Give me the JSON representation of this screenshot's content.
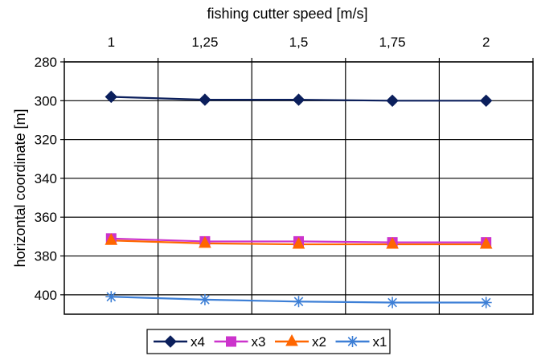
{
  "chart_data": {
    "type": "line",
    "title": "",
    "xlabel": "fishing cutter speed [m/s]",
    "ylabel": "horizontal coordinate [m]",
    "x_axis_position": "top",
    "y_axis_inverted": true,
    "categories": [
      "1",
      "1,25",
      "1,5",
      "1,75",
      "2"
    ],
    "ylim": [
      280,
      410
    ],
    "yticks": [
      280,
      300,
      320,
      340,
      360,
      380,
      400
    ],
    "grid": true,
    "legend_position": "bottom",
    "series": [
      {
        "name": "x4",
        "values": [
          298,
          299.5,
          299.5,
          300,
          300
        ],
        "color": "#0b1f5c",
        "marker": "diamond"
      },
      {
        "name": "x3",
        "values": [
          371,
          372.5,
          372.5,
          373,
          373
        ],
        "color": "#cc33cc",
        "marker": "square"
      },
      {
        "name": "x2",
        "values": [
          372,
          373.5,
          374,
          374,
          374
        ],
        "color": "#ff6600",
        "marker": "triangle"
      },
      {
        "name": "x1",
        "values": [
          401,
          402.5,
          403.5,
          404,
          404
        ],
        "color": "#3d7fd6",
        "marker": "star"
      }
    ]
  }
}
